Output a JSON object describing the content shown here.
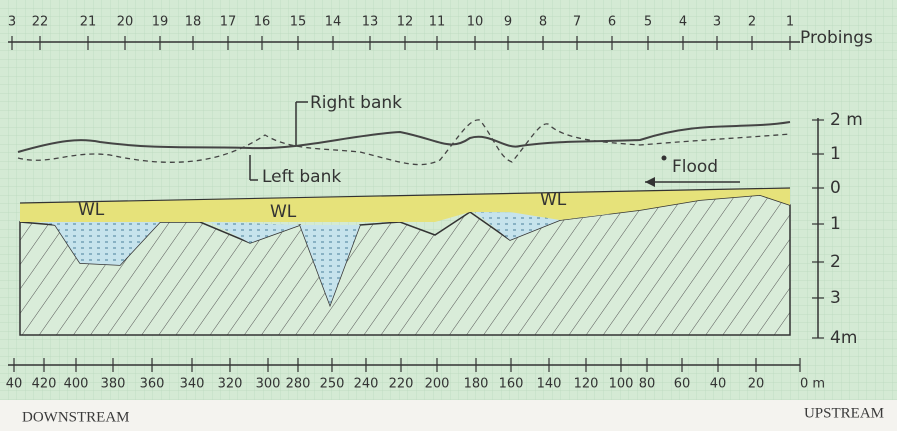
{
  "probings": {
    "numbers": [
      "3",
      "22",
      "21",
      "20",
      "19",
      "18",
      "17",
      "16",
      "15",
      "14",
      "13",
      "12",
      "11",
      "10",
      "9",
      "8",
      "7",
      "6",
      "5",
      "4",
      "3",
      "2",
      "1"
    ],
    "label": "Probings"
  },
  "distances": {
    "labels": [
      "40",
      "420",
      "400",
      "380",
      "360",
      "340",
      "320",
      "300",
      "280",
      "250",
      "240",
      "220",
      "200",
      "180",
      "160",
      "140",
      "120",
      "100",
      "80",
      "60",
      "40",
      "20",
      "0 m"
    ]
  },
  "depth_scale": {
    "labels": [
      "2 m",
      "1",
      "0",
      "1",
      "2",
      "3",
      "4m"
    ]
  },
  "annotations": {
    "right_bank": "Right bank",
    "left_bank": "Left bank",
    "flood": "Flood",
    "water_level": [
      "WL",
      "WL",
      "WL"
    ]
  },
  "footer": {
    "downstream": "DOWNSTREAM",
    "upstream": "UPSTREAM"
  }
}
